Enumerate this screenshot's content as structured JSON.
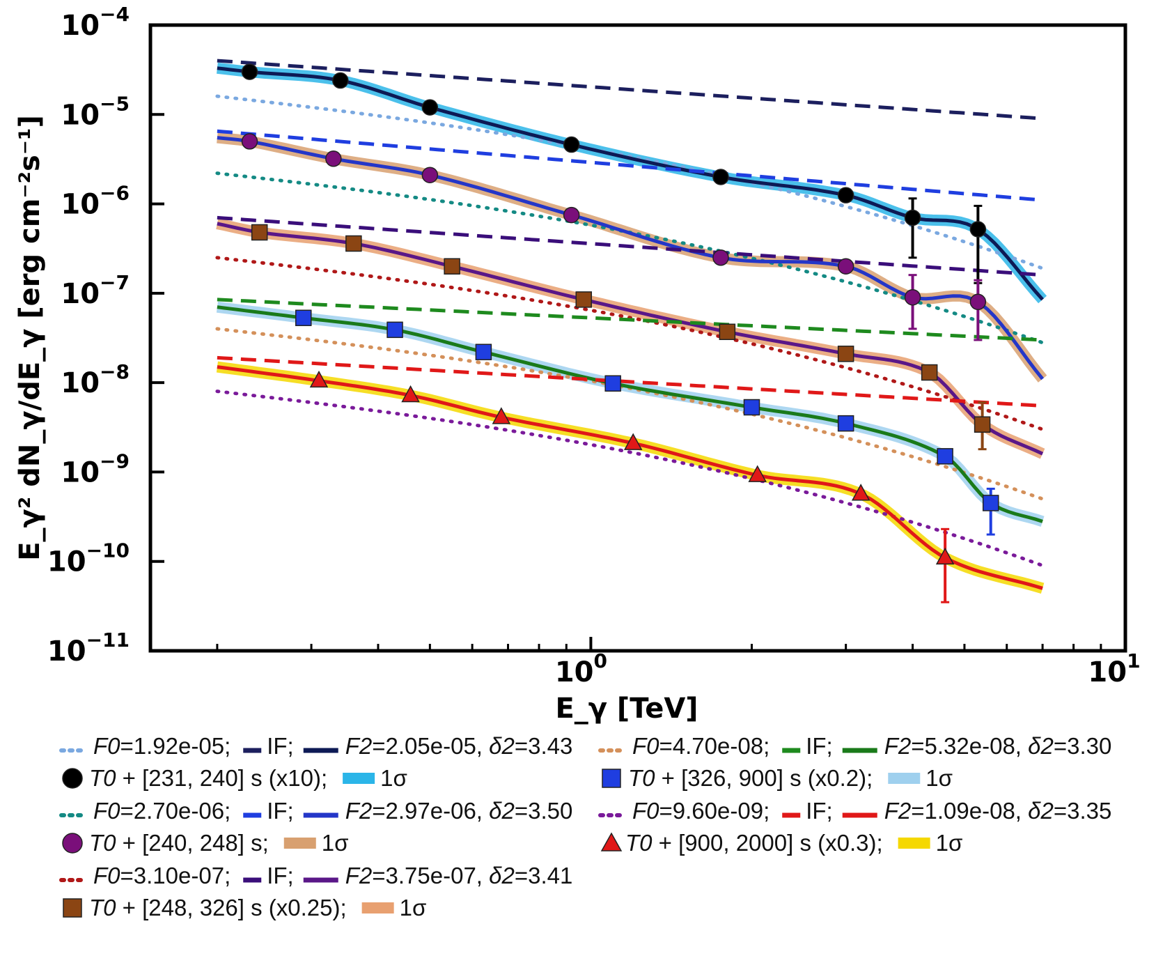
{
  "chart_data": {
    "type": "line",
    "xscale": "log",
    "yscale": "log",
    "xlim": [
      0.15,
      10
    ],
    "ylim": [
      1e-11,
      0.0001
    ],
    "xlabel": "E_γ [TeV]",
    "ylabel": "E_γ² dN_γ/dE_γ [erg cm⁻²s⁻¹]",
    "x_ticks": [
      {
        "value": 1,
        "base": "10",
        "exp": "0"
      },
      {
        "value": 10,
        "base": "10",
        "exp": "1"
      }
    ],
    "y_ticks": [
      {
        "value": 0.0001,
        "base": "10",
        "exp": "−4"
      },
      {
        "value": 1e-05,
        "base": "10",
        "exp": "−5"
      },
      {
        "value": 1e-06,
        "base": "10",
        "exp": "−6"
      },
      {
        "value": 1e-07,
        "base": "10",
        "exp": "−7"
      },
      {
        "value": 1e-08,
        "base": "10",
        "exp": "−8"
      },
      {
        "value": 1e-09,
        "base": "10",
        "exp": "−9"
      },
      {
        "value": 1e-10,
        "base": "10",
        "exp": "−10"
      },
      {
        "value": 1e-11,
        "base": "10",
        "exp": "−11"
      }
    ],
    "model_x_range": [
      0.2,
      7.0
    ],
    "series": [
      {
        "name": "T0 + [231, 240] s (x10)",
        "marker": "circle",
        "marker_color": "#000000",
        "dotted_color": "#7aa8e0",
        "if_color": "#1c1f5e",
        "fit_color": "#0d1a55",
        "band_color": "#2bb5e8",
        "dotted_line": {
          "at_0.2": 1.6e-05,
          "at_7": 1.9e-07
        },
        "if_line": {
          "at_0.2": 4e-05,
          "at_7": 9e-06
        },
        "fit_line": {
          "at_0.2": 3.3e-05,
          "at_7": 8.5e-08
        },
        "points": [
          {
            "x": 0.23,
            "y": 3e-05
          },
          {
            "x": 0.34,
            "y": 2.4e-05
          },
          {
            "x": 0.5,
            "y": 1.2e-05
          },
          {
            "x": 0.92,
            "y": 4.6e-06
          },
          {
            "x": 1.75,
            "y": 2e-06
          },
          {
            "x": 3.0,
            "y": 1.25e-06
          },
          {
            "x": 4.0,
            "y": 7e-07,
            "err": [
              2.5e-07,
              1.15e-06
            ]
          },
          {
            "x": 5.3,
            "y": 5.2e-07,
            "err": [
              1.3e-07,
              9.5e-07
            ]
          }
        ]
      },
      {
        "name": "T0 + [240, 248] s",
        "marker": "circle",
        "marker_color": "#7a0f7a",
        "dotted_color": "#148a84",
        "if_color": "#1f3ee0",
        "fit_color": "#2436c8",
        "band_color": "#d8a070",
        "dotted_line": {
          "at_0.2": 2.2e-06,
          "at_7": 2.8e-08
        },
        "if_line": {
          "at_0.2": 6.5e-06,
          "at_7": 1.1e-06
        },
        "fit_line": {
          "at_0.2": 5.5e-06,
          "at_7": 1.1e-08
        },
        "points": [
          {
            "x": 0.23,
            "y": 5e-06
          },
          {
            "x": 0.33,
            "y": 3.2e-06
          },
          {
            "x": 0.5,
            "y": 2.1e-06
          },
          {
            "x": 0.92,
            "y": 7.5e-07
          },
          {
            "x": 1.75,
            "y": 2.5e-07
          },
          {
            "x": 3.0,
            "y": 2e-07
          },
          {
            "x": 4.0,
            "y": 9e-08,
            "err": [
              4e-08,
              1.6e-07
            ]
          },
          {
            "x": 5.3,
            "y": 8e-08,
            "err": [
              3e-08,
              1.4e-07
            ]
          }
        ]
      },
      {
        "name": "T0 + [248, 326] s (x0.25)",
        "marker": "square",
        "marker_color": "#8b4513",
        "dotted_color": "#b01818",
        "if_color": "#3a0e7a",
        "fit_color": "#5a1788",
        "band_color": "#e8a070",
        "dotted_line": {
          "at_0.2": 2.5e-07,
          "at_7": 3e-09
        },
        "if_line": {
          "at_0.2": 7e-07,
          "at_7": 1.6e-07
        },
        "fit_line": {
          "at_0.2": 6e-07,
          "at_7": 1.6e-09
        },
        "points": [
          {
            "x": 0.24,
            "y": 4.8e-07
          },
          {
            "x": 0.36,
            "y": 3.6e-07
          },
          {
            "x": 0.55,
            "y": 2e-07
          },
          {
            "x": 0.97,
            "y": 8.5e-08
          },
          {
            "x": 1.8,
            "y": 3.7e-08
          },
          {
            "x": 3.0,
            "y": 2.1e-08
          },
          {
            "x": 4.3,
            "y": 1.3e-08
          },
          {
            "x": 5.4,
            "y": 3.4e-09,
            "err": [
              1.8e-09,
              6e-09
            ]
          }
        ]
      },
      {
        "name": "T0 + [326, 900] s (x0.2)",
        "marker": "square",
        "marker_color": "#1f3ee0",
        "dotted_color": "#d4905a",
        "if_color": "#1e8a1e",
        "fit_color": "#1a7a1a",
        "band_color": "#9fd0ee",
        "dotted_line": {
          "at_0.2": 4e-08,
          "at_7": 5e-10
        },
        "if_line": {
          "at_0.2": 8.5e-08,
          "at_7": 3e-08
        },
        "fit_line": {
          "at_0.2": 7e-08,
          "at_7": 2.8e-10
        },
        "points": [
          {
            "x": 0.29,
            "y": 5.3e-08
          },
          {
            "x": 0.43,
            "y": 3.9e-08
          },
          {
            "x": 0.63,
            "y": 2.2e-08
          },
          {
            "x": 1.1,
            "y": 9.8e-09
          },
          {
            "x": 2.0,
            "y": 5.3e-09
          },
          {
            "x": 3.0,
            "y": 3.5e-09
          },
          {
            "x": 4.6,
            "y": 1.5e-09
          },
          {
            "x": 5.6,
            "y": 4.5e-10,
            "err": [
              2e-10,
              6.5e-10
            ]
          }
        ]
      },
      {
        "name": "T0 + [900, 2000] s (x0.3)",
        "marker": "triangle",
        "marker_color": "#e01818",
        "dotted_color": "#7a1a9a",
        "if_color": "#e01818",
        "fit_color": "#e01818",
        "band_color": "#f5d800",
        "dotted_line": {
          "at_0.2": 8e-09,
          "at_7": 9e-11
        },
        "if_line": {
          "at_0.2": 1.9e-08,
          "at_7": 5.5e-09
        },
        "fit_line": {
          "at_0.2": 1.5e-08,
          "at_7": 5e-11
        },
        "points": [
          {
            "x": 0.31,
            "y": 1.05e-08
          },
          {
            "x": 0.46,
            "y": 7.2e-09
          },
          {
            "x": 0.68,
            "y": 4.1e-09
          },
          {
            "x": 1.2,
            "y": 2.1e-09
          },
          {
            "x": 2.05,
            "y": 9.2e-10
          },
          {
            "x": 3.2,
            "y": 5.7e-10
          },
          {
            "x": 4.6,
            "y": 1.1e-10,
            "err": [
              3.5e-11,
              2.3e-10
            ]
          }
        ]
      }
    ],
    "legend": {
      "placement": "below",
      "left_column": [
        {
          "style": "dotted",
          "color": "#7aa8e0",
          "text": "F0=1.92e-05;",
          "parts": [
            [
              "it",
              "F0"
            ],
            [
              "n",
              "=1.92e-05;"
            ]
          ]
        },
        {
          "style": "solid-short",
          "color": "#1c1f5e",
          "text": "IF;",
          "parts": [
            [
              "n",
              "IF;"
            ]
          ]
        },
        {
          "style": "solid",
          "color": "#0d1a55",
          "text": "F2=2.05e-05, δ2=3.43",
          "parts": [
            [
              "it",
              "F2"
            ],
            [
              "n",
              "=2.05e-05, "
            ],
            [
              "it",
              "δ2"
            ],
            [
              "n",
              "=3.43"
            ]
          ]
        }
      ]
    }
  },
  "legend_rows": [
    {
      "row": "a1",
      "items": [
        {
          "kind": "dotted",
          "color": "#7aa8e0",
          "label_it": "F0",
          "label": "=1.92e-05;"
        },
        {
          "kind": "short",
          "color": "#1c1f5e",
          "label_it": "",
          "label": "IF;"
        },
        {
          "kind": "line",
          "color": "#0d1a55",
          "label_it": "F2",
          "label": "=2.05e-05, ",
          "label_it2": "δ2",
          "label2": "=3.43"
        }
      ]
    },
    {
      "row": "a2",
      "items": [
        {
          "kind": "circle",
          "color": "#000000",
          "label_it": "T0",
          "label": " + [231, 240] s (x10);"
        },
        {
          "kind": "band",
          "color": "#2bb5e8",
          "label_it": "",
          "label": "1σ"
        }
      ]
    },
    {
      "row": "b1",
      "items": [
        {
          "kind": "dotted",
          "color": "#148a84",
          "label_it": "F0",
          "label": "=2.70e-06;"
        },
        {
          "kind": "short",
          "color": "#1f3ee0",
          "label_it": "",
          "label": "IF;"
        },
        {
          "kind": "line",
          "color": "#2436c8",
          "label_it": "F2",
          "label": "=2.97e-06, ",
          "label_it2": "δ2",
          "label2": "=3.50"
        }
      ]
    },
    {
      "row": "b2",
      "items": [
        {
          "kind": "circle",
          "color": "#7a0f7a",
          "label_it": "T0",
          "label": " + [240, 248] s;"
        },
        {
          "kind": "band",
          "color": "#d8a070",
          "label_it": "",
          "label": "1σ"
        }
      ]
    },
    {
      "row": "c1",
      "items": [
        {
          "kind": "dotted",
          "color": "#b01818",
          "label_it": "F0",
          "label": "=3.10e-07;"
        },
        {
          "kind": "short",
          "color": "#3a0e7a",
          "label_it": "",
          "label": "IF;"
        },
        {
          "kind": "line",
          "color": "#5a1788",
          "label_it": "F2",
          "label": "=3.75e-07, ",
          "label_it2": "δ2",
          "label2": "=3.41"
        }
      ]
    },
    {
      "row": "c2",
      "items": [
        {
          "kind": "square",
          "color": "#8b4513",
          "label_it": "T0",
          "label": " + [248, 326] s (x0.25);"
        },
        {
          "kind": "band",
          "color": "#e8a070",
          "label_it": "",
          "label": "1σ"
        }
      ]
    },
    {
      "row": "d1",
      "items": [
        {
          "kind": "dotted",
          "color": "#d4905a",
          "label_it": "F0",
          "label": "=4.70e-08;"
        },
        {
          "kind": "short",
          "color": "#1e8a1e",
          "label_it": "",
          "label": "IF;"
        },
        {
          "kind": "line",
          "color": "#1a7a1a",
          "label_it": "F2",
          "label": "=5.32e-08, ",
          "label_it2": "δ2",
          "label2": "=3.30"
        }
      ]
    },
    {
      "row": "d2",
      "items": [
        {
          "kind": "square",
          "color": "#1f3ee0",
          "label_it": "T0",
          "label": " + [326, 900] s (x0.2);"
        },
        {
          "kind": "band",
          "color": "#9fd0ee",
          "label_it": "",
          "label": "1σ"
        }
      ]
    },
    {
      "row": "e1",
      "items": [
        {
          "kind": "dotted",
          "color": "#7a1a9a",
          "label_it": "F0",
          "label": "=9.60e-09;"
        },
        {
          "kind": "short",
          "color": "#e01818",
          "label_it": "",
          "label": "IF;"
        },
        {
          "kind": "line",
          "color": "#e01818",
          "label_it": "F2",
          "label": "=1.09e-08, ",
          "label_it2": "δ2",
          "label2": "=3.35"
        }
      ]
    },
    {
      "row": "e2",
      "items": [
        {
          "kind": "triangle",
          "color": "#e01818",
          "label_it": "T0",
          "label": " + [900, 2000] s (x0.3);"
        },
        {
          "kind": "band",
          "color": "#f5d800",
          "label_it": "",
          "label": "1σ"
        }
      ]
    }
  ]
}
